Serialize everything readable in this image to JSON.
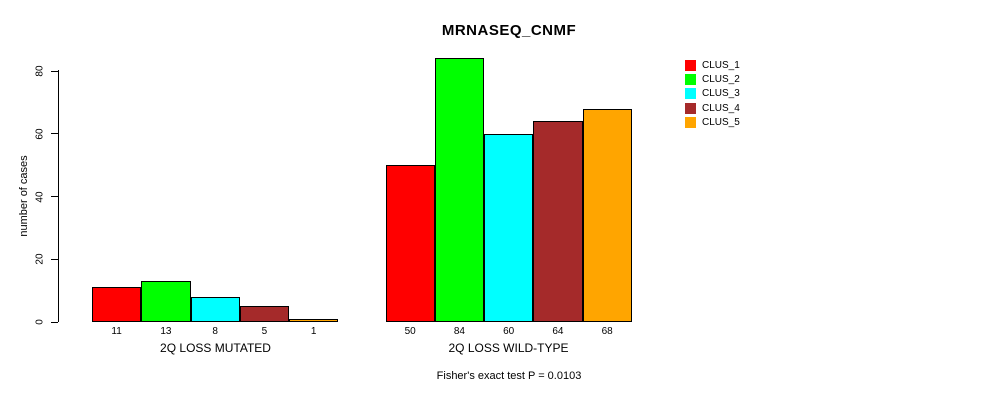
{
  "chart_data": {
    "type": "bar",
    "title": "MRNASEQ_CNMF",
    "ylabel": "number of cases",
    "ylim": [
      0,
      80
    ],
    "yticks": [
      0,
      20,
      40,
      60,
      80
    ],
    "grid": false,
    "legend_position": "top-right",
    "background_color": "#FFFFFF",
    "bar_border_color": "#000000",
    "groups": [
      {
        "label": "2Q LOSS MUTATED",
        "values": [
          11,
          13,
          8,
          5,
          1
        ]
      },
      {
        "label": "2Q LOSS WILD-TYPE",
        "values": [
          50,
          84,
          60,
          64,
          68
        ]
      }
    ],
    "series": [
      {
        "name": "CLUS_1",
        "color": "#FF0000"
      },
      {
        "name": "CLUS_2",
        "color": "#00FF00"
      },
      {
        "name": "CLUS_3",
        "color": "#00FFFF"
      },
      {
        "name": "CLUS_4",
        "color": "#A52A2A"
      },
      {
        "name": "CLUS_5",
        "color": "#FFA500"
      }
    ],
    "caption": "Fisher's exact test P = 0.0103"
  }
}
